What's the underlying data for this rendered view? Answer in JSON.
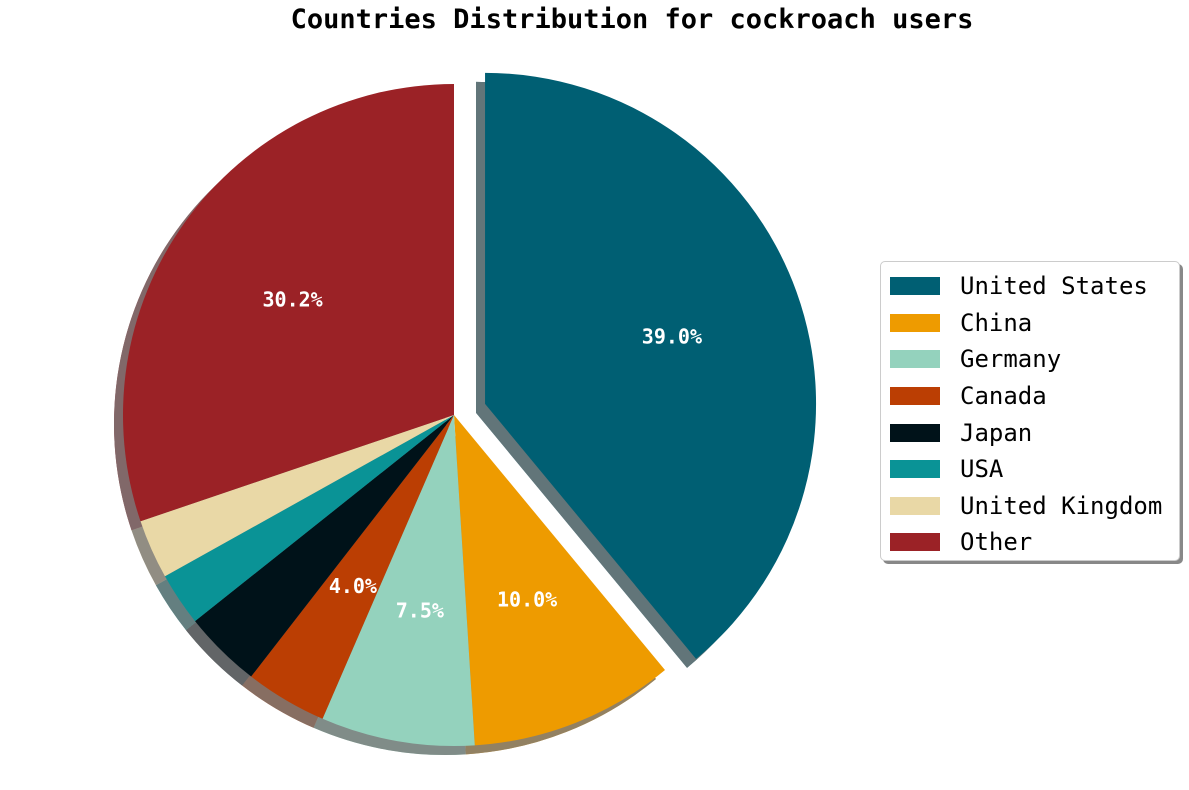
{
  "chart_data": {
    "type": "pie",
    "title": "Countries Distribution for cockroach users",
    "slices": [
      {
        "name": "United States",
        "value": 39.0,
        "color": "#005f73",
        "show_label": true,
        "label": "39.0%",
        "explode": true
      },
      {
        "name": "China",
        "value": 10.0,
        "color": "#ee9b00",
        "show_label": true,
        "label": "10.0%",
        "explode": false
      },
      {
        "name": "Germany",
        "value": 7.5,
        "color": "#94d2bd",
        "show_label": true,
        "label": "7.5%",
        "explode": false
      },
      {
        "name": "Canada",
        "value": 4.0,
        "color": "#bb3e03",
        "show_label": true,
        "label": "4.0%",
        "explode": false
      },
      {
        "name": "Japan",
        "value": 3.8,
        "color": "#001219",
        "show_label": false,
        "label": "",
        "explode": false
      },
      {
        "name": "USA",
        "value": 2.6,
        "color": "#0a9396",
        "show_label": false,
        "label": "",
        "explode": false
      },
      {
        "name": "United Kingdom",
        "value": 2.9,
        "color": "#e9d8a6",
        "show_label": false,
        "label": "",
        "explode": false
      },
      {
        "name": "Other",
        "value": 30.2,
        "color": "#9b2226",
        "show_label": true,
        "label": "30.2%",
        "explode": false
      }
    ],
    "start_angle": 90,
    "direction": "clockwise",
    "shadow": true,
    "legend_position": "right"
  }
}
